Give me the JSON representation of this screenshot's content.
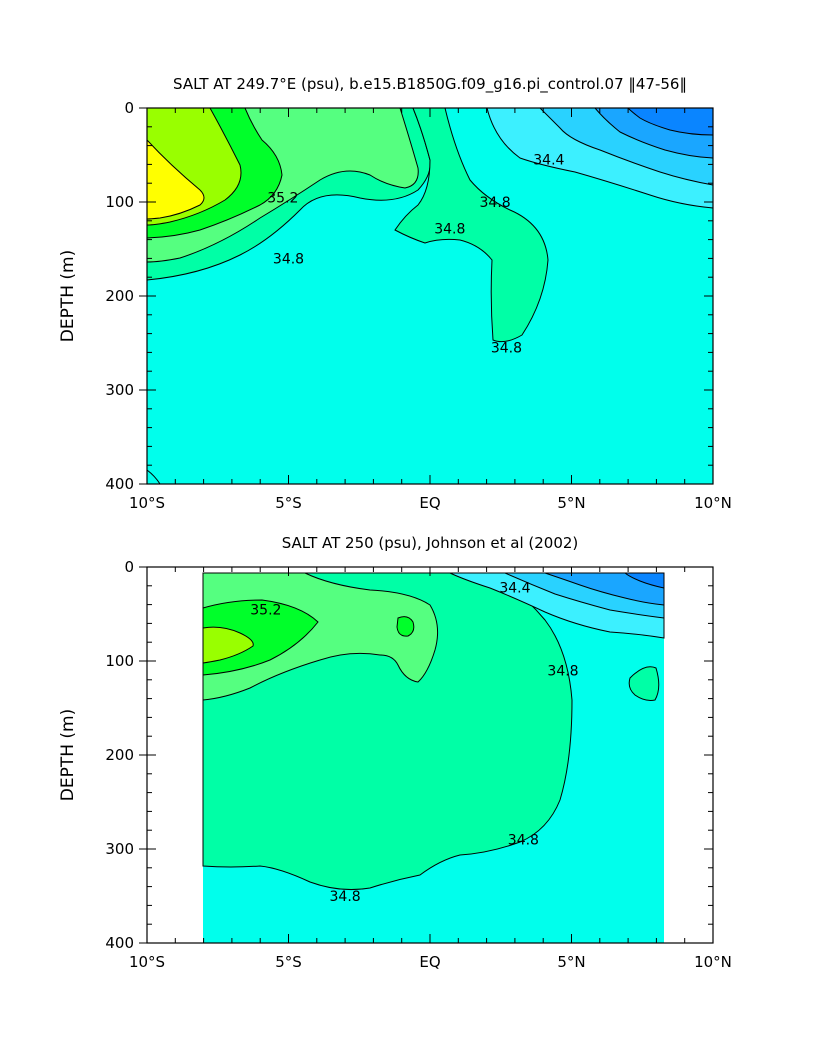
{
  "chart_data": [
    {
      "type": "contour",
      "title": "SALT AT 249.7°E (psu), b.e15.B1850G.f09_g16.pi_control.07 ‖47-56‖",
      "xlabel": "",
      "ylabel": "DEPTH (m)",
      "xlim": [
        -10,
        10
      ],
      "ylim": [
        400,
        0
      ],
      "x_ticks": [
        "10°S",
        "5°S",
        "EQ",
        "5°N",
        "10°N"
      ],
      "y_ticks": [
        "0",
        "100",
        "200",
        "300",
        "400"
      ],
      "data_extent_x": [
        -10,
        10
      ],
      "data_extent_y": [
        0,
        400
      ],
      "colors": {
        "s33_8": "#0a85ff",
        "s34_0": "#1aa6ff",
        "s34_2": "#29d2ff",
        "s34_4": "#3cf0ff",
        "s34_6": "#00ffec",
        "s34_8": "#00ffa6",
        "s35_0": "#55ff80",
        "s35_2": "#00ff2a",
        "s35_4": "#99ff00",
        "s35_6": "#ffff00"
      },
      "contour_labels": [
        {
          "text": "35.2",
          "x": -5.2,
          "y": 95
        },
        {
          "text": "34.8",
          "x": -5.0,
          "y": 160
        },
        {
          "text": "34.8",
          "x": 0.7,
          "y": 128
        },
        {
          "text": "34.8",
          "x": 2.3,
          "y": 100
        },
        {
          "text": "34.4",
          "x": 4.2,
          "y": 55
        },
        {
          "text": "34.8",
          "x": 2.7,
          "y": 255
        }
      ]
    },
    {
      "type": "contour",
      "title": "SALT AT 250 (psu), Johnson et al (2002)",
      "xlabel": "",
      "ylabel": "DEPTH (m)",
      "xlim": [
        -10,
        10
      ],
      "ylim": [
        400,
        0
      ],
      "x_ticks": [
        "10°S",
        "5°S",
        "EQ",
        "5°N",
        "10°N"
      ],
      "y_ticks": [
        "0",
        "100",
        "200",
        "300",
        "400"
      ],
      "data_extent_x": [
        -8,
        8.2
      ],
      "data_extent_y": [
        8,
        400
      ],
      "colors": {
        "s34_8_plus": "#00ffa6",
        "s34_6": "#00ffec",
        "s35_0": "#55ff80",
        "s35_2": "#00ff2a",
        "s35_4": "#99ff00",
        "s34_4": "#3cf0ff",
        "s34_2": "#29d2ff",
        "s34_0": "#1aa6ff",
        "s33_8": "#0a85ff"
      },
      "contour_labels": [
        {
          "text": "35.2",
          "x": -5.8,
          "y": 45
        },
        {
          "text": "34.4",
          "x": 3.0,
          "y": 22
        },
        {
          "text": "34.8",
          "x": 4.7,
          "y": 110
        },
        {
          "text": "34.8",
          "x": 3.3,
          "y": 290
        },
        {
          "text": "34.8",
          "x": -3.0,
          "y": 350
        }
      ]
    }
  ]
}
